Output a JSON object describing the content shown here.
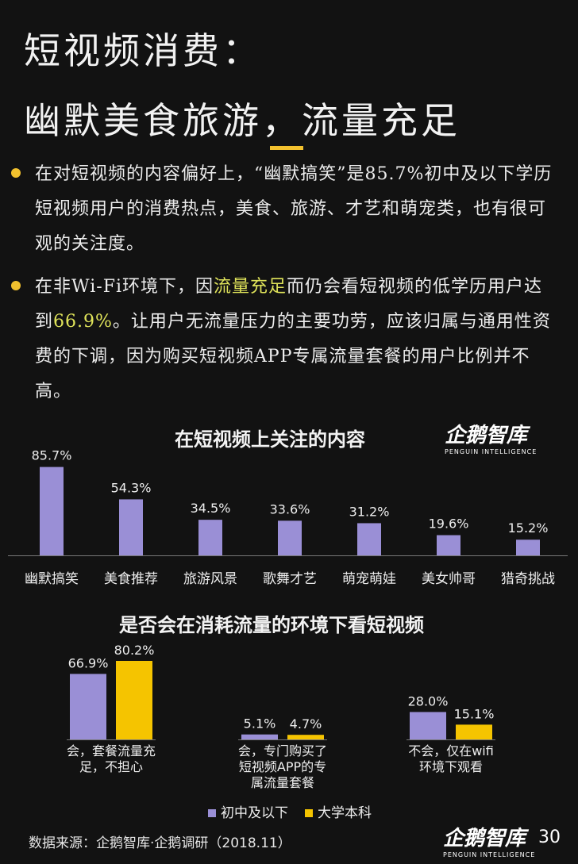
{
  "page": {
    "title_line1": "短视频消费：",
    "title_line2": "幽默美食旅游，流量充足",
    "bullet1": {
      "text": "在对短视频的内容偏好上，“幽默搞笑”是85.7%初中及以下学历短视频用户的消费热点，美食、旅游、才艺和萌宠类，也有很可观的关注度。"
    },
    "bullet2": {
      "before": "在非Wi-Fi环境下，因",
      "highlight1": "流量充足",
      "middle": "而仍会看短视频的低学历用户达到",
      "highlight2": "66.9%",
      "after": "。让用户无流量压力的主要功劳，应该归属与通用性资费的下调，因为购买短视频APP专属流量套餐的用户比例并不高。"
    },
    "logo_main": "企鹅智库",
    "logo_sub": "PENGUIN INTELLIGENCE",
    "source": "数据来源：企鹅智库·企鹅调研（2018.11）",
    "page_number": "30",
    "colors": {
      "accent": "#f2c12e",
      "bar_purple": "#9a8fd6",
      "bar_yellow": "#f5c400",
      "highlight": "#dfe35a",
      "background": "#121212"
    }
  },
  "chart_data": [
    {
      "type": "bar",
      "title": "在短视频上关注的内容",
      "categories": [
        "幽默搞笑",
        "美食推荐",
        "旅游风景",
        "歌舞才艺",
        "萌宠萌娃",
        "美女帅哥",
        "猎奇挑战"
      ],
      "values": [
        85.7,
        54.3,
        34.5,
        33.6,
        31.2,
        19.6,
        15.2
      ],
      "value_labels": [
        "85.7%",
        "54.3%",
        "34.5%",
        "33.6%",
        "31.2%",
        "19.6%",
        "15.2%"
      ],
      "xlabel": "",
      "ylabel": "",
      "ylim": [
        0,
        100
      ],
      "grid": false
    },
    {
      "type": "bar",
      "title": "是否会在消耗流量的环境下看短视频",
      "categories": [
        [
          "会，套餐流量充",
          "足，不担心"
        ],
        [
          "会，专门购买了",
          "短视频APP的专",
          "属流量套餐"
        ],
        [
          "不会，仅在wifi",
          "环境下观看"
        ]
      ],
      "series": [
        {
          "name": "初中及以下",
          "values": [
            66.9,
            5.1,
            28.0
          ],
          "value_labels": [
            "66.9%",
            "5.1%",
            "28.0%"
          ],
          "color": "#9a8fd6"
        },
        {
          "name": "大学本科",
          "values": [
            80.2,
            4.7,
            15.1
          ],
          "value_labels": [
            "80.2%",
            "4.7%",
            "15.1%"
          ],
          "color": "#f5c400"
        }
      ],
      "xlabel": "",
      "ylabel": "",
      "ylim": [
        0,
        100
      ],
      "grid": false,
      "legend_position": "bottom"
    }
  ]
}
